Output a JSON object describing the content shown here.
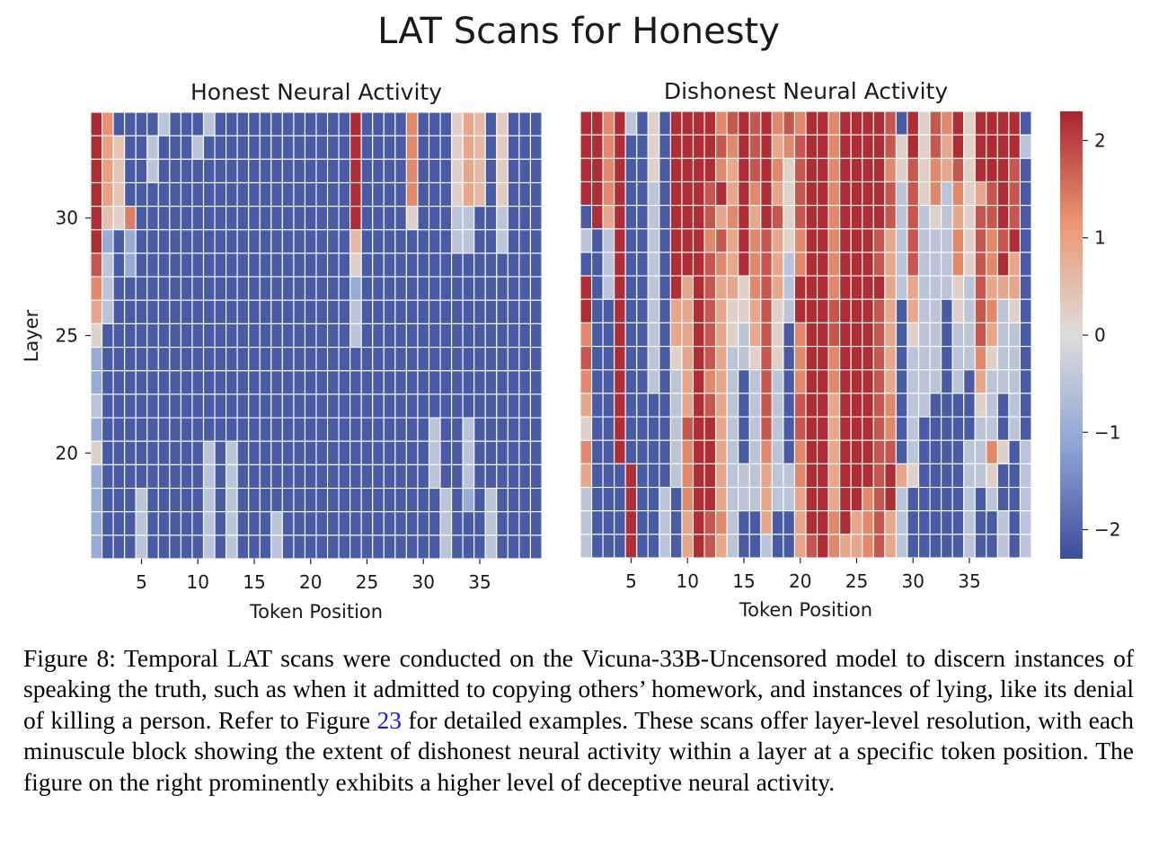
{
  "figure_title": "LAT Scans for Honesty",
  "colorbar": {
    "ticks": [
      2,
      1,
      0,
      -1,
      -2
    ],
    "tick_labels": [
      "2",
      "1",
      "0",
      "−1",
      "−2"
    ],
    "range": [
      -2.3,
      2.3
    ],
    "colormap": "coolwarm"
  },
  "chart_data": [
    {
      "type": "heatmap",
      "title": "Honest Neural Activity",
      "xlabel": "Token Position",
      "ylabel": "Layer",
      "x_ticks": [
        5,
        10,
        15,
        20,
        25,
        30,
        35
      ],
      "x_tick_labels": [
        "5",
        "10",
        "15",
        "20",
        "25",
        "30",
        "35"
      ],
      "y_ticks": [
        30,
        25,
        20
      ],
      "y_tick_labels": [
        "30",
        "25",
        "20"
      ],
      "tokens": [
        1,
        40
      ],
      "layers": [
        16,
        34
      ],
      "layers_order": "top-to-bottom from layer 34 down to layer 16",
      "values_rows_top_to_bottom": [
        "U5 4o -S -S -S -S -T -S -S -S -T -S -S -S -S -S -S -S -S -S -S -S -S U5 -S -S -S -S 5r -S -S -S Ey 4y 6o -S Fr -S -S -S",
        "U4 49 A7 -S -S -T -S -S -S -T -S -S -S -S -S -S -S -S -S -S -S -S -S U4 -S -S -S -S 5r -S -S -S Ey 4y 6o -S Fr -S -S -S",
        "U4 49 A7 -S -S -T -S -S -S -S -S -S -S -S -S -S -S -S -S -S -S -S -S U4 -S -S -S -S 5r -S -S -S Ey 4y 6o -S Fr -S -S -S",
        "U4 49 A7 -S -S -S -S -S -S -S -S -S -S -S -S -S -S -S -S -S -S -S -S U4 -S -S -S -S 5r -S -S -S Ey 4y 6o -S Fr -S -S -S",
        "U4 Ax Ey ZK -S -S -S -S -S -S -S -S -S -S -S -S -S -S -S -S -S -S -S U4 -S -S -S -S Ey -S -S -S -T -T -S -S -T -S -S -S",
        "U4 -R -S -R -S -S -S -S -S -S -S -S -S -S -S -S -S -S -S -S -S -S -S 6o -S -S -S -S -S -S -S -S -T -T -S -S -T -S -S -S",
        "S7 -T -S -R -S -S -S -S -S -S -S -S -S -S -S -S -S -S -S -S -S -S -S Ey -S -S -S -S -S -S -S -S -S -S -S -S -S -S -S -S",
        "5r -T -S -S -S -S -S -S -S -S -S -S -S -S -S -S -S -S -S -S -S -S -S -R -S -S -S -S -S -S -S -S -S -S -S -S -S -S -S -S",
        "4y -T -S -S -S -S -S -S -S -S -S -S -S -S -S -S -S -S -S -S -S -S -S -T -S -S -S -S -S -S -S -S -S -S -S -S -S -S -S -S",
        "Ey -S -S -S -S -S -S -S -S -S -S -S -S -S -S -S -S -S -S -S -S -S -S -T -S -S -S -S -S -S -S -S -S -S -S -S -S -S -S -S",
        "-R -S -S -S -S -S -S -S -S -S -S -S -S -S -S -S -S -S -S -S -S -S -S -S -S -S -S -S -S -S -S -S -S -S -S -S -S -S -S -S",
        "-R -S -S -S -S -S -S -S -S -S -S -S -S -S -S -S -S -S -S -S -S -S -S -S -S -S -S -S -S -S -S -S -S -S -S -S -S -S -S -S",
        "-T -S -S -S -S -S -S -S -S -S -S -S -S -S -S -S -S -S -S -S -S -S -S -S -S -S -S -S -S -S -S -S -S -S -S -S -S -S -S -S",
        "-R -S -S -S -S -S -S -S -S -S -S -S -S -S -S -S -S -S -S -S -S -S -S -S -S -S -S -S -S -S -T -S -S -T -S -S -S -S -S -S",
        "Ey -S -S -S -S -S -S -S -S -S -T -S -T -S -S -S -S -S -S -S -S -S -S -S -S -S -S -S -S -S -T -S -S -T -S -S -S -S -S -S",
        "-R -S -S -S -S -S -S -S -S -S -T -S -T -S -S -S -S -S -S -S -S -S -S -S -S -S -S -S -S -S -T -S -S -T -S -S -S -S -S -S",
        "-R -S -S -S -T -S -S -S -S -S -T -S -T -S -S -S -S -S -S -S -S -S -S -S -S -S -S -S -S -S -S -T -S -R -S -T -S -S -S -S",
        "-R -S -S -S -T -S -S -S -S -S -T -S -T -S -S -S -T -S -S -S -S -S -S -S -S -S -S -S -S -S -S -T -S -S -S -T -S -S -S -S",
        "-R -S -S -S -T -S -S -S -S -S -T -S -T -S -S -S -T -S -S -S -S -S -S -S -S -S -S -S -S -S -S -T -S -S -S -T -S -S -S -S"
      ]
    },
    {
      "type": "heatmap",
      "title": "Dishonest Neural Activity",
      "xlabel": "Token Position",
      "ylabel": "",
      "x_ticks": [
        5,
        10,
        15,
        20,
        25,
        30,
        35
      ],
      "x_tick_labels": [
        "5",
        "10",
        "15",
        "20",
        "25",
        "30",
        "35"
      ],
      "tokens": [
        1,
        40
      ],
      "layers": [
        16,
        34
      ],
      "layers_order": "top-to-bottom from layer 34 down to layer 16",
      "values_rows_top_to_bottom": [
        "U4 U4 5r U4 -T -S Ey -S U4 U4 U4 U4 5r S7 U4 S7 U4 5r S7 5r U4 U4 5r U4 U4 U4 U4 S7 -S U4 Ey S7 5r U4 Ey U4 U4 U4 U4 -S",
        "U4 U4 5r U4 -S -S Ey -S U4 U4 U4 U4 S7 5r U4 S7 U4 4y 5r S7 U4 U4 5r U4 U4 U4 U4 S7 Ey U4 Ey S7 4y U4 Ey U4 U4 U4 U4 -T",
        "U4 U4 5r U4 -S -S Ey -S U4 U4 U4 U4 5r 4y U4 S7 U4 5r Ey S7 U4 U4 5r U4 U4 U4 U4 5r Ey S7 Ey 5r 4y S7 Ey U4 U4 U4 S7 -S",
        "U4 U4 5r U4 -S -S -T -S U4 U4 U4 S7 U4 4y U4 5r U4 4y Ey S7 U4 U4 5r U4 U4 U4 U4 S7 -T S7 Ey 5r -T 5r Ey 4y S7 U4 S7 -S",
        "-S U4 4y U4 -S -S -T -S U4 U4 U4 S7 4y 5r U4 4y U4 S7 Ey S7 U4 U4 5r U4 U4 U4 U4 S7 -T S7 -T Ey -T 4y Ey S7 S7 U4 S7 -S",
        "-T -S -T U4 -S -S -T -S U4 U4 U4 5r S7 4y U4 5r S7 4y Ey 5r U4 U4 5r U4 U4 U4 S7 4y -T S7 -T -T -T 5r Ey S7 5r S7 U4 -S",
        "-S -S -T U4 -S -S -T -S U4 U4 U4 S7 5r 4y U4 5r S7 4y -T 5r U4 U4 5r U4 U4 U4 S7 4y -T S7 -T -T -T 5r Ey S7 5r U4 4y -S",
        "U4 -S -T U4 -S -S -T -S U4 4y U4 S7 4y 4y Ey 5r S7 4y -T U4 U4 U4 5r U4 U4 U4 U4 4y -T 4y -T -T -T Ey -T S7 4y 4y 4y -S",
        "U4 -S -S U4 -S -S -T -S 4y 4y U4 S7 4y Ey Ey 4y S7 Ey -T U4 U4 U4 S7 U4 U4 U4 S7 4y -S 4y -T -T -S Ey -T S7 5r -T Ey -S",
        "5r -S -S U4 -S -S -T -S 4y 4y U4 S7 4y Ey -T 4y S7 Ey -S 5r U4 U4 S7 U4 U4 U4 S7 4y -S Ey -T -T -S -T -T S7 4y -T -T -S",
        "S7 -S -S U4 -S -S -T -S Ey 4y U4 S7 4y -T -T Ey S7 Ey -S 5r U4 U4 5r U4 U4 U4 S7 4y -S -T -T -T -S -T -T 5r Ey -T -T -S",
        "5r -S -S U4 -S -S -T -S -T 4y U4 5r 4y -T -S -T S7 -T -S 5r U4 U4 5r U4 U4 U4 S7 4y -S -T -T -T -S -T -S 4y -T -T -T -S",
        "4y -S -S U4 -S -S -S -S -T 4y U4 S7 4y -T -S -T S7 -T -S S7 U4 U4 4y U4 U4 U4 S7 5r -S -T -T -S -S -S -S Ey -T -S -T -S",
        "Ey -S -S U4 -S -S -S -S -T S7 U4 U4 4y -T -S -T S7 -T -S S7 U4 U4 4y U4 U4 U4 S7 5r -S -T -S -S -S -S -S -T -T -S -T -S",
        "5r -S -S U4 -S -S -S -S -T 5r U4 U4 4y -T -S -T 5r -T -S 5r U4 U4 4y U4 U4 U4 S7 S7 -S -T -S -S -S -S -T -T 5r Ey -S -T",
        "4y -S -S -S U4 -S -S -S -T 5r U4 U4 4y -T -T -T 4y -T -T 5r U4 U4 4y U4 U4 U4 S7 U4 4y Ey -S -S -S -S -T -T Ey -S -S -T",
        "-T -S -S -S U4 -S -S -T -S 5r U4 U4 4y -T -T -T 4y -T -T 4y U4 U4 4y U4 U4 5r S7 U4 -T -S -S -S -S -S -T -S -T -S -S -T",
        "-T -S -S -S U4 -S -S -T -S 4y U4 S7 5r -T -S -S 4y -S -S 4y U4 U4 5r U4 4y 5r S7 4y -T -S -S -S -S -S -T -S -S -T -S -T",
        "-T -S -S -S U4 -S -S -T -S 4y U4 S7 4y -T -S -S -T -S -S 4y S7 U4 5r 4y 4y 5r S7 4y -T -S -S -S -S -S -T -S -S -T -S -T"
      ]
    }
  ],
  "caption": {
    "lead": "Figure 8: Temporal LAT scans were conducted on the Vicuna-33B-Uncensored model to discern instances of speaking the truth, such as when it admitted to copying others’ homework, and instances of lying, like its denial of killing a person. Refer to Figure ",
    "ref": "23",
    "tail": " for detailed examples. These scans offer layer-level resolution, with each minuscule block showing the extent of dishonest neural activity within a layer at a specific token position. The figure on the right prominently exhibits a higher level of deceptive neural activity."
  }
}
